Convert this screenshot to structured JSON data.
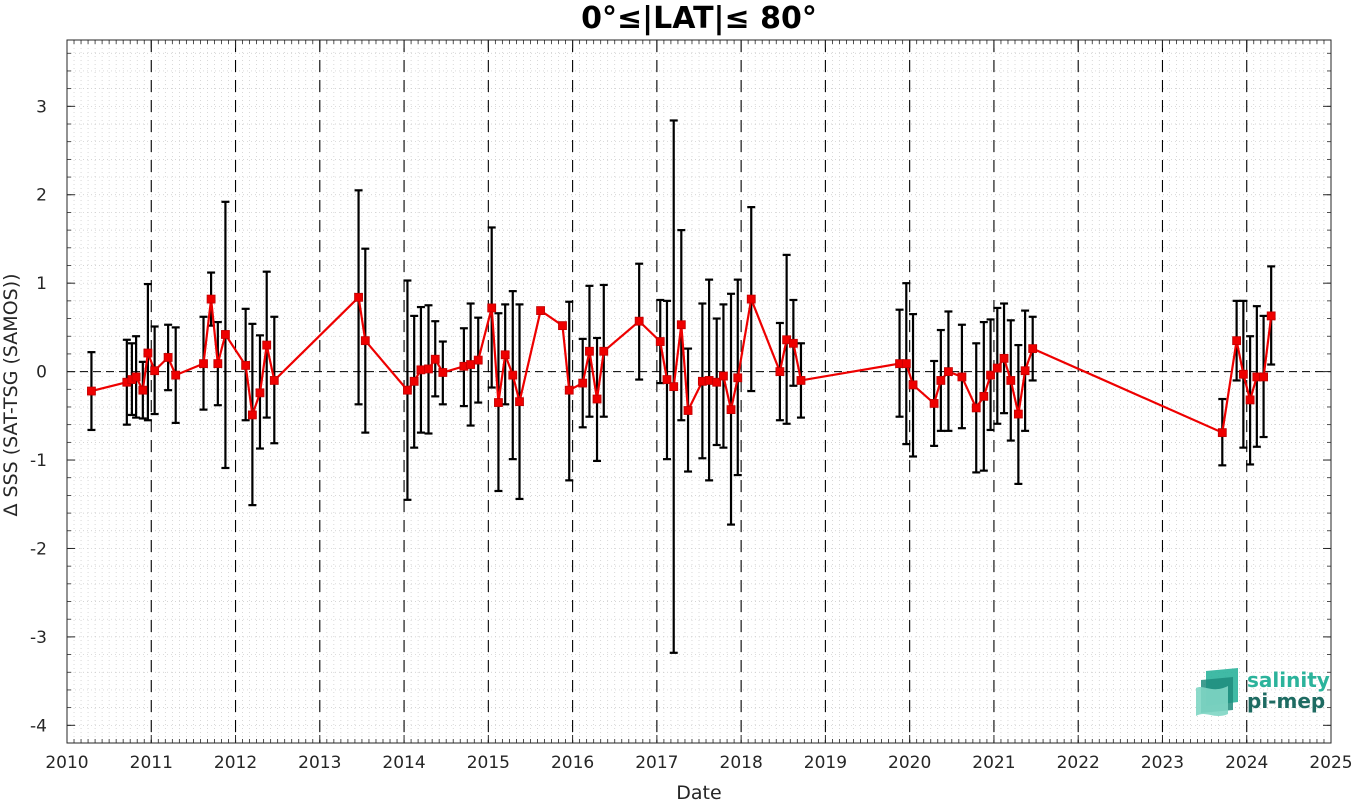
{
  "chart_data": {
    "type": "line",
    "title": "0°≤|LAT|≤ 80°",
    "xlabel": "Date",
    "ylabel": "Δ SSS (SAT-TSG (SAMOS))",
    "xlim": [
      2010,
      2025
    ],
    "ylim": [
      -4.2,
      3.75
    ],
    "xticks": [
      2010,
      2011,
      2012,
      2013,
      2014,
      2015,
      2016,
      2017,
      2018,
      2019,
      2020,
      2021,
      2022,
      2023,
      2024,
      2025
    ],
    "yticks": [
      -4,
      -3,
      -2,
      -1,
      0,
      1,
      2,
      3
    ],
    "grid": "minor-dotted",
    "reference_line": 0,
    "year_separators": "dashed",
    "colors": {
      "series": "#ee0000",
      "errorbar": "#000000",
      "reference": "#000000"
    },
    "series": [
      {
        "points": [
          {
            "x": 2010.29,
            "y": -0.22,
            "lo": -0.66,
            "hi": 0.22
          },
          {
            "x": 2010.71,
            "y": -0.12,
            "lo": -0.6,
            "hi": 0.36
          },
          {
            "x": 2010.77,
            "y": -0.09,
            "lo": -0.49,
            "hi": 0.32
          },
          {
            "x": 2010.82,
            "y": -0.06,
            "lo": -0.52,
            "hi": 0.4
          },
          {
            "x": 2010.9,
            "y": -0.21,
            "lo": -0.53,
            "hi": 0.11
          },
          {
            "x": 2010.96,
            "y": 0.21,
            "lo": -0.55,
            "hi": 0.99
          },
          {
            "x": 2011.04,
            "y": 0.01,
            "lo": -0.48,
            "hi": 0.51
          },
          {
            "x": 2011.2,
            "y": 0.16,
            "lo": -0.21,
            "hi": 0.53
          },
          {
            "x": 2011.29,
            "y": -0.04,
            "lo": -0.58,
            "hi": 0.5
          },
          {
            "x": 2011.62,
            "y": 0.09,
            "lo": -0.43,
            "hi": 0.62
          },
          {
            "x": 2011.71,
            "y": 0.82,
            "lo": 0.52,
            "hi": 1.12
          },
          {
            "x": 2011.79,
            "y": 0.09,
            "lo": -0.38,
            "hi": 0.56
          },
          {
            "x": 2011.88,
            "y": 0.42,
            "lo": -1.09,
            "hi": 1.92
          },
          {
            "x": 2012.12,
            "y": 0.07,
            "lo": -0.55,
            "hi": 0.71
          },
          {
            "x": 2012.2,
            "y": -0.49,
            "lo": -1.51,
            "hi": 0.54
          },
          {
            "x": 2012.29,
            "y": -0.24,
            "lo": -0.87,
            "hi": 0.41
          },
          {
            "x": 2012.37,
            "y": 0.3,
            "lo": -0.52,
            "hi": 1.13
          },
          {
            "x": 2012.46,
            "y": -0.1,
            "lo": -0.81,
            "hi": 0.62
          },
          {
            "x": 2013.46,
            "y": 0.84,
            "lo": -0.37,
            "hi": 2.05
          },
          {
            "x": 2013.54,
            "y": 0.35,
            "lo": -0.69,
            "hi": 1.39
          },
          {
            "x": 2014.04,
            "y": -0.21,
            "lo": -1.45,
            "hi": 1.03
          },
          {
            "x": 2014.12,
            "y": -0.11,
            "lo": -0.86,
            "hi": 0.63
          },
          {
            "x": 2014.2,
            "y": 0.02,
            "lo": -0.69,
            "hi": 0.73
          },
          {
            "x": 2014.29,
            "y": 0.03,
            "lo": -0.7,
            "hi": 0.75
          },
          {
            "x": 2014.37,
            "y": 0.14,
            "lo": -0.28,
            "hi": 0.57
          },
          {
            "x": 2014.46,
            "y": -0.01,
            "lo": -0.37,
            "hi": 0.34
          },
          {
            "x": 2014.71,
            "y": 0.06,
            "lo": -0.39,
            "hi": 0.49
          },
          {
            "x": 2014.79,
            "y": 0.08,
            "lo": -0.61,
            "hi": 0.77
          },
          {
            "x": 2014.88,
            "y": 0.13,
            "lo": -0.35,
            "hi": 0.61
          },
          {
            "x": 2015.04,
            "y": 0.72,
            "lo": -0.18,
            "hi": 1.63
          },
          {
            "x": 2015.12,
            "y": -0.35,
            "lo": -1.35,
            "hi": 0.66
          },
          {
            "x": 2015.2,
            "y": 0.19,
            "lo": -0.37,
            "hi": 0.76
          },
          {
            "x": 2015.29,
            "y": -0.04,
            "lo": -0.99,
            "hi": 0.91
          },
          {
            "x": 2015.37,
            "y": -0.34,
            "lo": -1.44,
            "hi": 0.76
          },
          {
            "x": 2015.62,
            "y": 0.69,
            "lo": 0.69,
            "hi": 0.69
          },
          {
            "x": 2015.88,
            "y": 0.52,
            "lo": 0.52,
            "hi": 0.52
          },
          {
            "x": 2015.96,
            "y": -0.21,
            "lo": -1.23,
            "hi": 0.79
          },
          {
            "x": 2016.12,
            "y": -0.13,
            "lo": -0.63,
            "hi": 0.37
          },
          {
            "x": 2016.2,
            "y": 0.23,
            "lo": -0.51,
            "hi": 0.97
          },
          {
            "x": 2016.29,
            "y": -0.31,
            "lo": -1.01,
            "hi": 0.38
          },
          {
            "x": 2016.37,
            "y": 0.23,
            "lo": -0.51,
            "hi": 0.98
          },
          {
            "x": 2016.79,
            "y": 0.57,
            "lo": -0.09,
            "hi": 1.22
          },
          {
            "x": 2017.04,
            "y": 0.34,
            "lo": -0.13,
            "hi": 0.81
          },
          {
            "x": 2017.12,
            "y": -0.09,
            "lo": -0.99,
            "hi": 0.8
          },
          {
            "x": 2017.2,
            "y": -0.17,
            "lo": -3.18,
            "hi": 2.84
          },
          {
            "x": 2017.29,
            "y": 0.53,
            "lo": -0.55,
            "hi": 1.6
          },
          {
            "x": 2017.37,
            "y": -0.44,
            "lo": -1.13,
            "hi": 0.26
          },
          {
            "x": 2017.54,
            "y": -0.11,
            "lo": -0.98,
            "hi": 0.77
          },
          {
            "x": 2017.62,
            "y": -0.1,
            "lo": -1.23,
            "hi": 1.04
          },
          {
            "x": 2017.71,
            "y": -0.12,
            "lo": -0.83,
            "hi": 0.6
          },
          {
            "x": 2017.79,
            "y": -0.05,
            "lo": -0.86,
            "hi": 0.76
          },
          {
            "x": 2017.88,
            "y": -0.43,
            "lo": -1.73,
            "hi": 0.88
          },
          {
            "x": 2017.96,
            "y": -0.07,
            "lo": -1.17,
            "hi": 1.04
          },
          {
            "x": 2018.12,
            "y": 0.82,
            "lo": -0.22,
            "hi": 1.86
          },
          {
            "x": 2018.46,
            "y": 0.0,
            "lo": -0.55,
            "hi": 0.55
          },
          {
            "x": 2018.54,
            "y": 0.36,
            "lo": -0.59,
            "hi": 1.32
          },
          {
            "x": 2018.62,
            "y": 0.32,
            "lo": -0.16,
            "hi": 0.81
          },
          {
            "x": 2018.71,
            "y": -0.1,
            "lo": -0.52,
            "hi": 0.32
          },
          {
            "x": 2019.88,
            "y": 0.09,
            "lo": -0.51,
            "hi": 0.7
          },
          {
            "x": 2019.96,
            "y": 0.09,
            "lo": -0.82,
            "hi": 1.0
          },
          {
            "x": 2020.04,
            "y": -0.15,
            "lo": -0.96,
            "hi": 0.65
          },
          {
            "x": 2020.29,
            "y": -0.36,
            "lo": -0.84,
            "hi": 0.12
          },
          {
            "x": 2020.37,
            "y": -0.1,
            "lo": -0.67,
            "hi": 0.47
          },
          {
            "x": 2020.46,
            "y": 0.0,
            "lo": -0.67,
            "hi": 0.68
          },
          {
            "x": 2020.62,
            "y": -0.06,
            "lo": -0.64,
            "hi": 0.53
          },
          {
            "x": 2020.79,
            "y": -0.41,
            "lo": -1.14,
            "hi": 0.32
          },
          {
            "x": 2020.88,
            "y": -0.28,
            "lo": -1.12,
            "hi": 0.56
          },
          {
            "x": 2020.96,
            "y": -0.04,
            "lo": -0.66,
            "hi": 0.59
          },
          {
            "x": 2021.04,
            "y": 0.04,
            "lo": -0.59,
            "hi": 0.72
          },
          {
            "x": 2021.12,
            "y": 0.15,
            "lo": -0.47,
            "hi": 0.77
          },
          {
            "x": 2021.2,
            "y": -0.1,
            "lo": -0.78,
            "hi": 0.58
          },
          {
            "x": 2021.29,
            "y": -0.48,
            "lo": -1.27,
            "hi": 0.3
          },
          {
            "x": 2021.37,
            "y": 0.01,
            "lo": -0.67,
            "hi": 0.69
          },
          {
            "x": 2021.46,
            "y": 0.26,
            "lo": -0.1,
            "hi": 0.62
          },
          {
            "x": 2023.71,
            "y": -0.69,
            "lo": -1.06,
            "hi": -0.31
          },
          {
            "x": 2023.88,
            "y": 0.35,
            "lo": -0.1,
            "hi": 0.8
          },
          {
            "x": 2023.96,
            "y": -0.03,
            "lo": -0.86,
            "hi": 0.8
          },
          {
            "x": 2024.04,
            "y": -0.32,
            "lo": -1.05,
            "hi": 0.4
          },
          {
            "x": 2024.12,
            "y": -0.06,
            "lo": -0.85,
            "hi": 0.74
          },
          {
            "x": 2024.2,
            "y": -0.06,
            "lo": -0.74,
            "hi": 0.63
          },
          {
            "x": 2024.29,
            "y": 0.63,
            "lo": 0.08,
            "hi": 1.19
          }
        ]
      }
    ]
  },
  "logo": {
    "line1": "salinity",
    "line2": "pi-mep",
    "color1": "#2bb39b",
    "color2": "#1e6b62"
  }
}
